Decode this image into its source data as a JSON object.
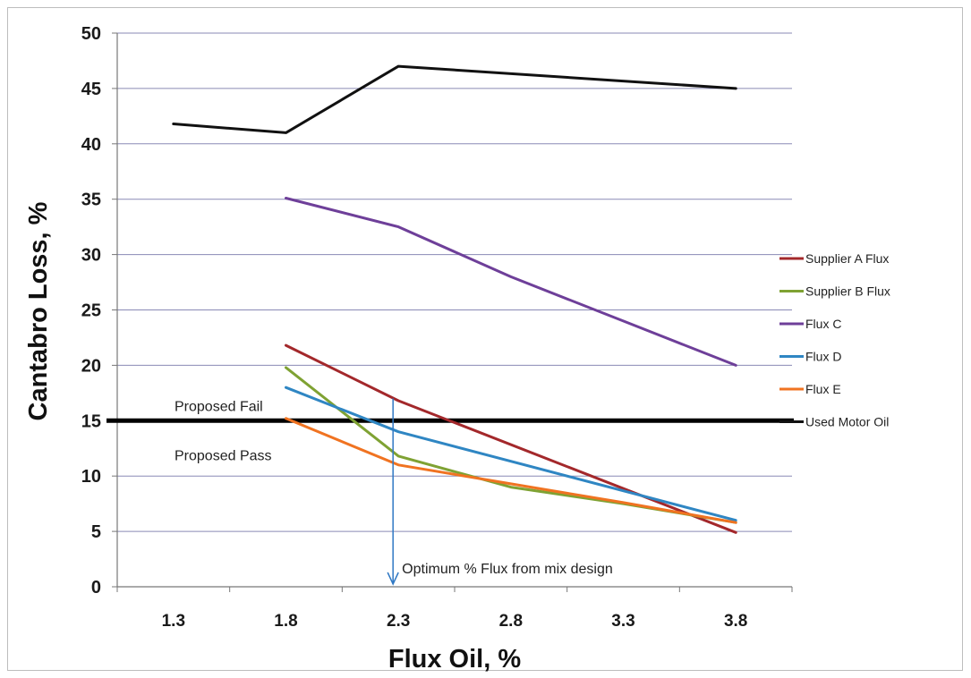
{
  "chart_data": {
    "type": "line",
    "xlabel": "Flux Oil, %",
    "ylabel": "Cantabro Loss, %",
    "x_categories": [
      "1.3",
      "1.8",
      "2.3",
      "2.8",
      "3.3",
      "3.8"
    ],
    "ylim": [
      0,
      50
    ],
    "yticks": [
      "0",
      "5",
      "10",
      "15",
      "20",
      "25",
      "30",
      "35",
      "40",
      "45",
      "50"
    ],
    "grid": true,
    "legend_position": "right",
    "series": [
      {
        "name": "Supplier A Flux",
        "color": "#a3282b",
        "x": [
          1.8,
          2.3,
          3.8
        ],
        "y": [
          21.8,
          16.8,
          4.9
        ]
      },
      {
        "name": "Supplier B Flux",
        "color": "#7fa233",
        "x": [
          1.8,
          2.3,
          2.8,
          3.3,
          3.8
        ],
        "y": [
          19.8,
          11.8,
          9.0,
          7.5,
          5.8
        ]
      },
      {
        "name": "Flux C",
        "color": "#6e3f99",
        "x": [
          1.8,
          2.3,
          2.8,
          3.3,
          3.8
        ],
        "y": [
          35.1,
          32.5,
          28.0,
          24.0,
          20.0
        ]
      },
      {
        "name": "Flux D",
        "color": "#2f86c3",
        "x": [
          1.8,
          2.3,
          3.8
        ],
        "y": [
          18.0,
          14.0,
          6.0
        ]
      },
      {
        "name": "Flux E",
        "color": "#f07321",
        "x": [
          1.8,
          2.3,
          2.8,
          3.3,
          3.8
        ],
        "y": [
          15.2,
          11.0,
          9.3,
          7.6,
          5.8
        ]
      },
      {
        "name": "Used Motor Oil",
        "color": "#111111",
        "x": [
          1.3,
          1.8,
          2.3,
          3.8
        ],
        "y": [
          41.8,
          41.0,
          47.0,
          45.0
        ]
      }
    ],
    "threshold": {
      "y": 15,
      "label_above": "Proposed Fail",
      "label_below": "Proposed Pass",
      "color": "#000000"
    },
    "annotation": {
      "text": "Optimum % Flux from mix design",
      "x": 2.3,
      "y_from": 17,
      "y_to": 0,
      "color": "#2f78c4"
    }
  }
}
